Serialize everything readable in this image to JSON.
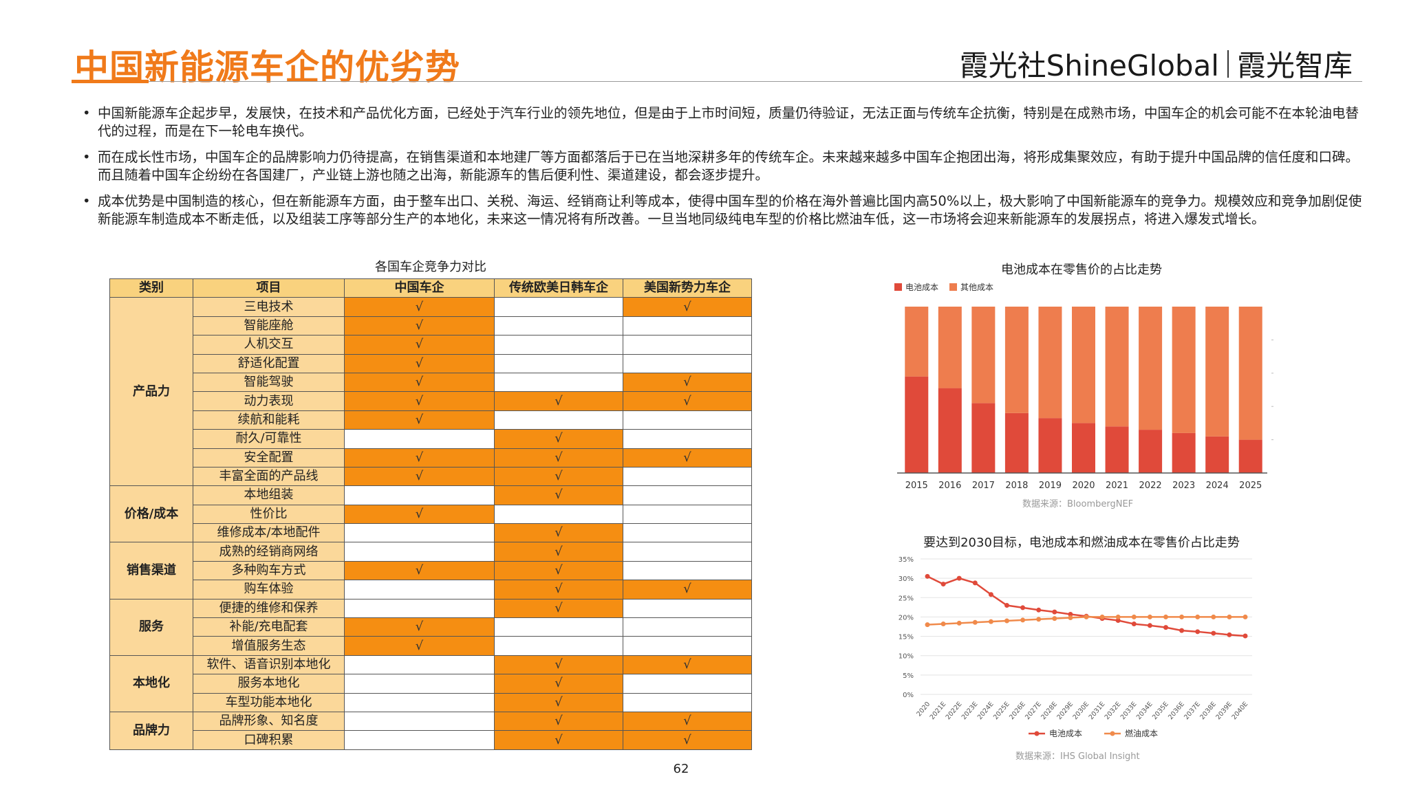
{
  "header": {
    "title": "中国新能源车企的优劣势",
    "brand_left": "霞光社ShineGlobal",
    "brand_right": "霞光智库"
  },
  "bullets": [
    "中国新能源车企起步早，发展快，在技术和产品优化方面，已经处于汽车行业的领先地位，但是由于上市时间短，质量仍待验证，无法正面与传统车企抗衡，特别是在成熟市场，中国车企的机会可能不在本轮油电替代的过程，而是在下一轮电车换代。",
    "而在成长性市场，中国车企的品牌影响力仍待提高，在销售渠道和本地建厂等方面都落后于已在当地深耕多年的传统车企。未来越来越多中国车企抱团出海，将形成集聚效应，有助于提升中国品牌的信任度和口碑。而且随着中国车企纷纷在各国建厂，产业链上游也随之出海，新能源车的售后便利性、渠道建设，都会逐步提升。",
    "成本优势是中国制造的核心，但在新能源车方面，由于整车出口、关税、海运、经销商让利等成本，使得中国车型的价格在海外普遍比国内高50%以上，极大影响了中国新能源车的竞争力。规模效应和竞争加剧促使新能源车制造成本不断走低，以及组装工序等部分生产的本地化，未来这一情况将有所改善。一旦当地同级纯电车型的价格比燃油车低，这一市场将会迎来新能源车的发展拐点，将进入爆发式增长。"
  ],
  "table": {
    "caption": "各国车企竞争力对比",
    "check": "√",
    "headers": [
      "类别",
      "项目",
      "中国车企",
      "传统欧美日韩车企",
      "美国新势力车企"
    ],
    "groups": [
      {
        "category": "产品力",
        "rows": [
          {
            "item": "三电技术",
            "marks": [
              true,
              false,
              true
            ]
          },
          {
            "item": "智能座舱",
            "marks": [
              true,
              false,
              false
            ]
          },
          {
            "item": "人机交互",
            "marks": [
              true,
              false,
              false
            ]
          },
          {
            "item": "舒适化配置",
            "marks": [
              true,
              false,
              false
            ]
          },
          {
            "item": "智能驾驶",
            "marks": [
              true,
              false,
              true
            ]
          },
          {
            "item": "动力表现",
            "marks": [
              true,
              true,
              true
            ]
          },
          {
            "item": "续航和能耗",
            "marks": [
              true,
              false,
              false
            ]
          },
          {
            "item": "耐久/可靠性",
            "marks": [
              false,
              true,
              false
            ]
          },
          {
            "item": "安全配置",
            "marks": [
              true,
              true,
              true
            ]
          },
          {
            "item": "丰富全面的产品线",
            "marks": [
              true,
              true,
              false
            ]
          }
        ]
      },
      {
        "category": "价格/成本",
        "rows": [
          {
            "item": "本地组装",
            "marks": [
              false,
              true,
              false
            ]
          },
          {
            "item": "性价比",
            "marks": [
              true,
              false,
              false
            ]
          },
          {
            "item": "维修成本/本地配件",
            "marks": [
              false,
              true,
              false
            ]
          }
        ]
      },
      {
        "category": "销售渠道",
        "rows": [
          {
            "item": "成熟的经销商网络",
            "marks": [
              false,
              true,
              false
            ]
          },
          {
            "item": "多种购车方式",
            "marks": [
              true,
              true,
              false
            ]
          },
          {
            "item": "购车体验",
            "marks": [
              false,
              true,
              true
            ]
          }
        ]
      },
      {
        "category": "服务",
        "rows": [
          {
            "item": "便捷的维修和保养",
            "marks": [
              false,
              true,
              false
            ]
          },
          {
            "item": "补能/充电配套",
            "marks": [
              true,
              false,
              false
            ]
          },
          {
            "item": "增值服务生态",
            "marks": [
              true,
              false,
              false
            ]
          }
        ]
      },
      {
        "category": "本地化",
        "rows": [
          {
            "item": "软件、语音识别本地化",
            "marks": [
              false,
              true,
              true
            ]
          },
          {
            "item": "服务本地化",
            "marks": [
              false,
              true,
              false
            ]
          },
          {
            "item": "车型功能本地化",
            "marks": [
              false,
              true,
              false
            ]
          }
        ]
      },
      {
        "category": "品牌力",
        "rows": [
          {
            "item": "品牌形象、知名度",
            "marks": [
              false,
              true,
              true
            ]
          },
          {
            "item": "口碑积累",
            "marks": [
              false,
              true,
              true
            ]
          }
        ]
      }
    ]
  },
  "chart_data": [
    {
      "type": "bar",
      "stacked": true,
      "title": "电池成本在零售价的占比走势",
      "categories": [
        "2015",
        "2016",
        "2017",
        "2018",
        "2019",
        "2020",
        "2021",
        "2022",
        "2023",
        "2024",
        "2025"
      ],
      "series": [
        {
          "name": "电池成本",
          "color": "#e04a3a",
          "values": [
            58,
            51,
            42,
            36,
            33,
            30,
            28,
            26,
            24,
            22,
            20
          ]
        },
        {
          "name": "其他成本",
          "color": "#ee7d4e",
          "values": [
            42,
            49,
            58,
            64,
            67,
            70,
            72,
            74,
            76,
            78,
            80
          ]
        }
      ],
      "ylim": [
        0,
        100
      ],
      "source": "数据来源：BloombergNEF"
    },
    {
      "type": "line",
      "title": "要达到2030目标，电池成本和燃油成本在零售价占比走势",
      "categories": [
        "2020",
        "2021E",
        "2022E",
        "2023E",
        "2024E",
        "2025E",
        "2026E",
        "2027E",
        "2028E",
        "2029E",
        "2030E",
        "2031E",
        "2032E",
        "2033E",
        "2034E",
        "2035E",
        "2036E",
        "2037E",
        "2038E",
        "2039E",
        "2040E"
      ],
      "y_ticks": [
        "0%",
        "5%",
        "10%",
        "15%",
        "20%",
        "25%",
        "30%",
        "35%"
      ],
      "ylim": [
        0,
        35
      ],
      "series": [
        {
          "name": "电池成本",
          "color": "#e04a3a",
          "values": [
            30.5,
            28.5,
            30,
            28.8,
            25.8,
            23,
            22.4,
            21.8,
            21.3,
            20.7,
            20.2,
            19.6,
            19.1,
            18.2,
            17.8,
            17.3,
            16.5,
            16.2,
            15.8,
            15.4,
            15.1
          ]
        },
        {
          "name": "燃油成本",
          "color": "#f08a4b",
          "values": [
            18,
            18.2,
            18.4,
            18.6,
            18.8,
            19,
            19.2,
            19.4,
            19.6,
            19.8,
            20,
            20,
            20,
            20,
            20,
            20,
            20,
            20,
            20,
            20,
            20
          ]
        }
      ],
      "source": "数据来源：IHS Global Insight"
    }
  ],
  "footer": {
    "page_number": "62"
  }
}
